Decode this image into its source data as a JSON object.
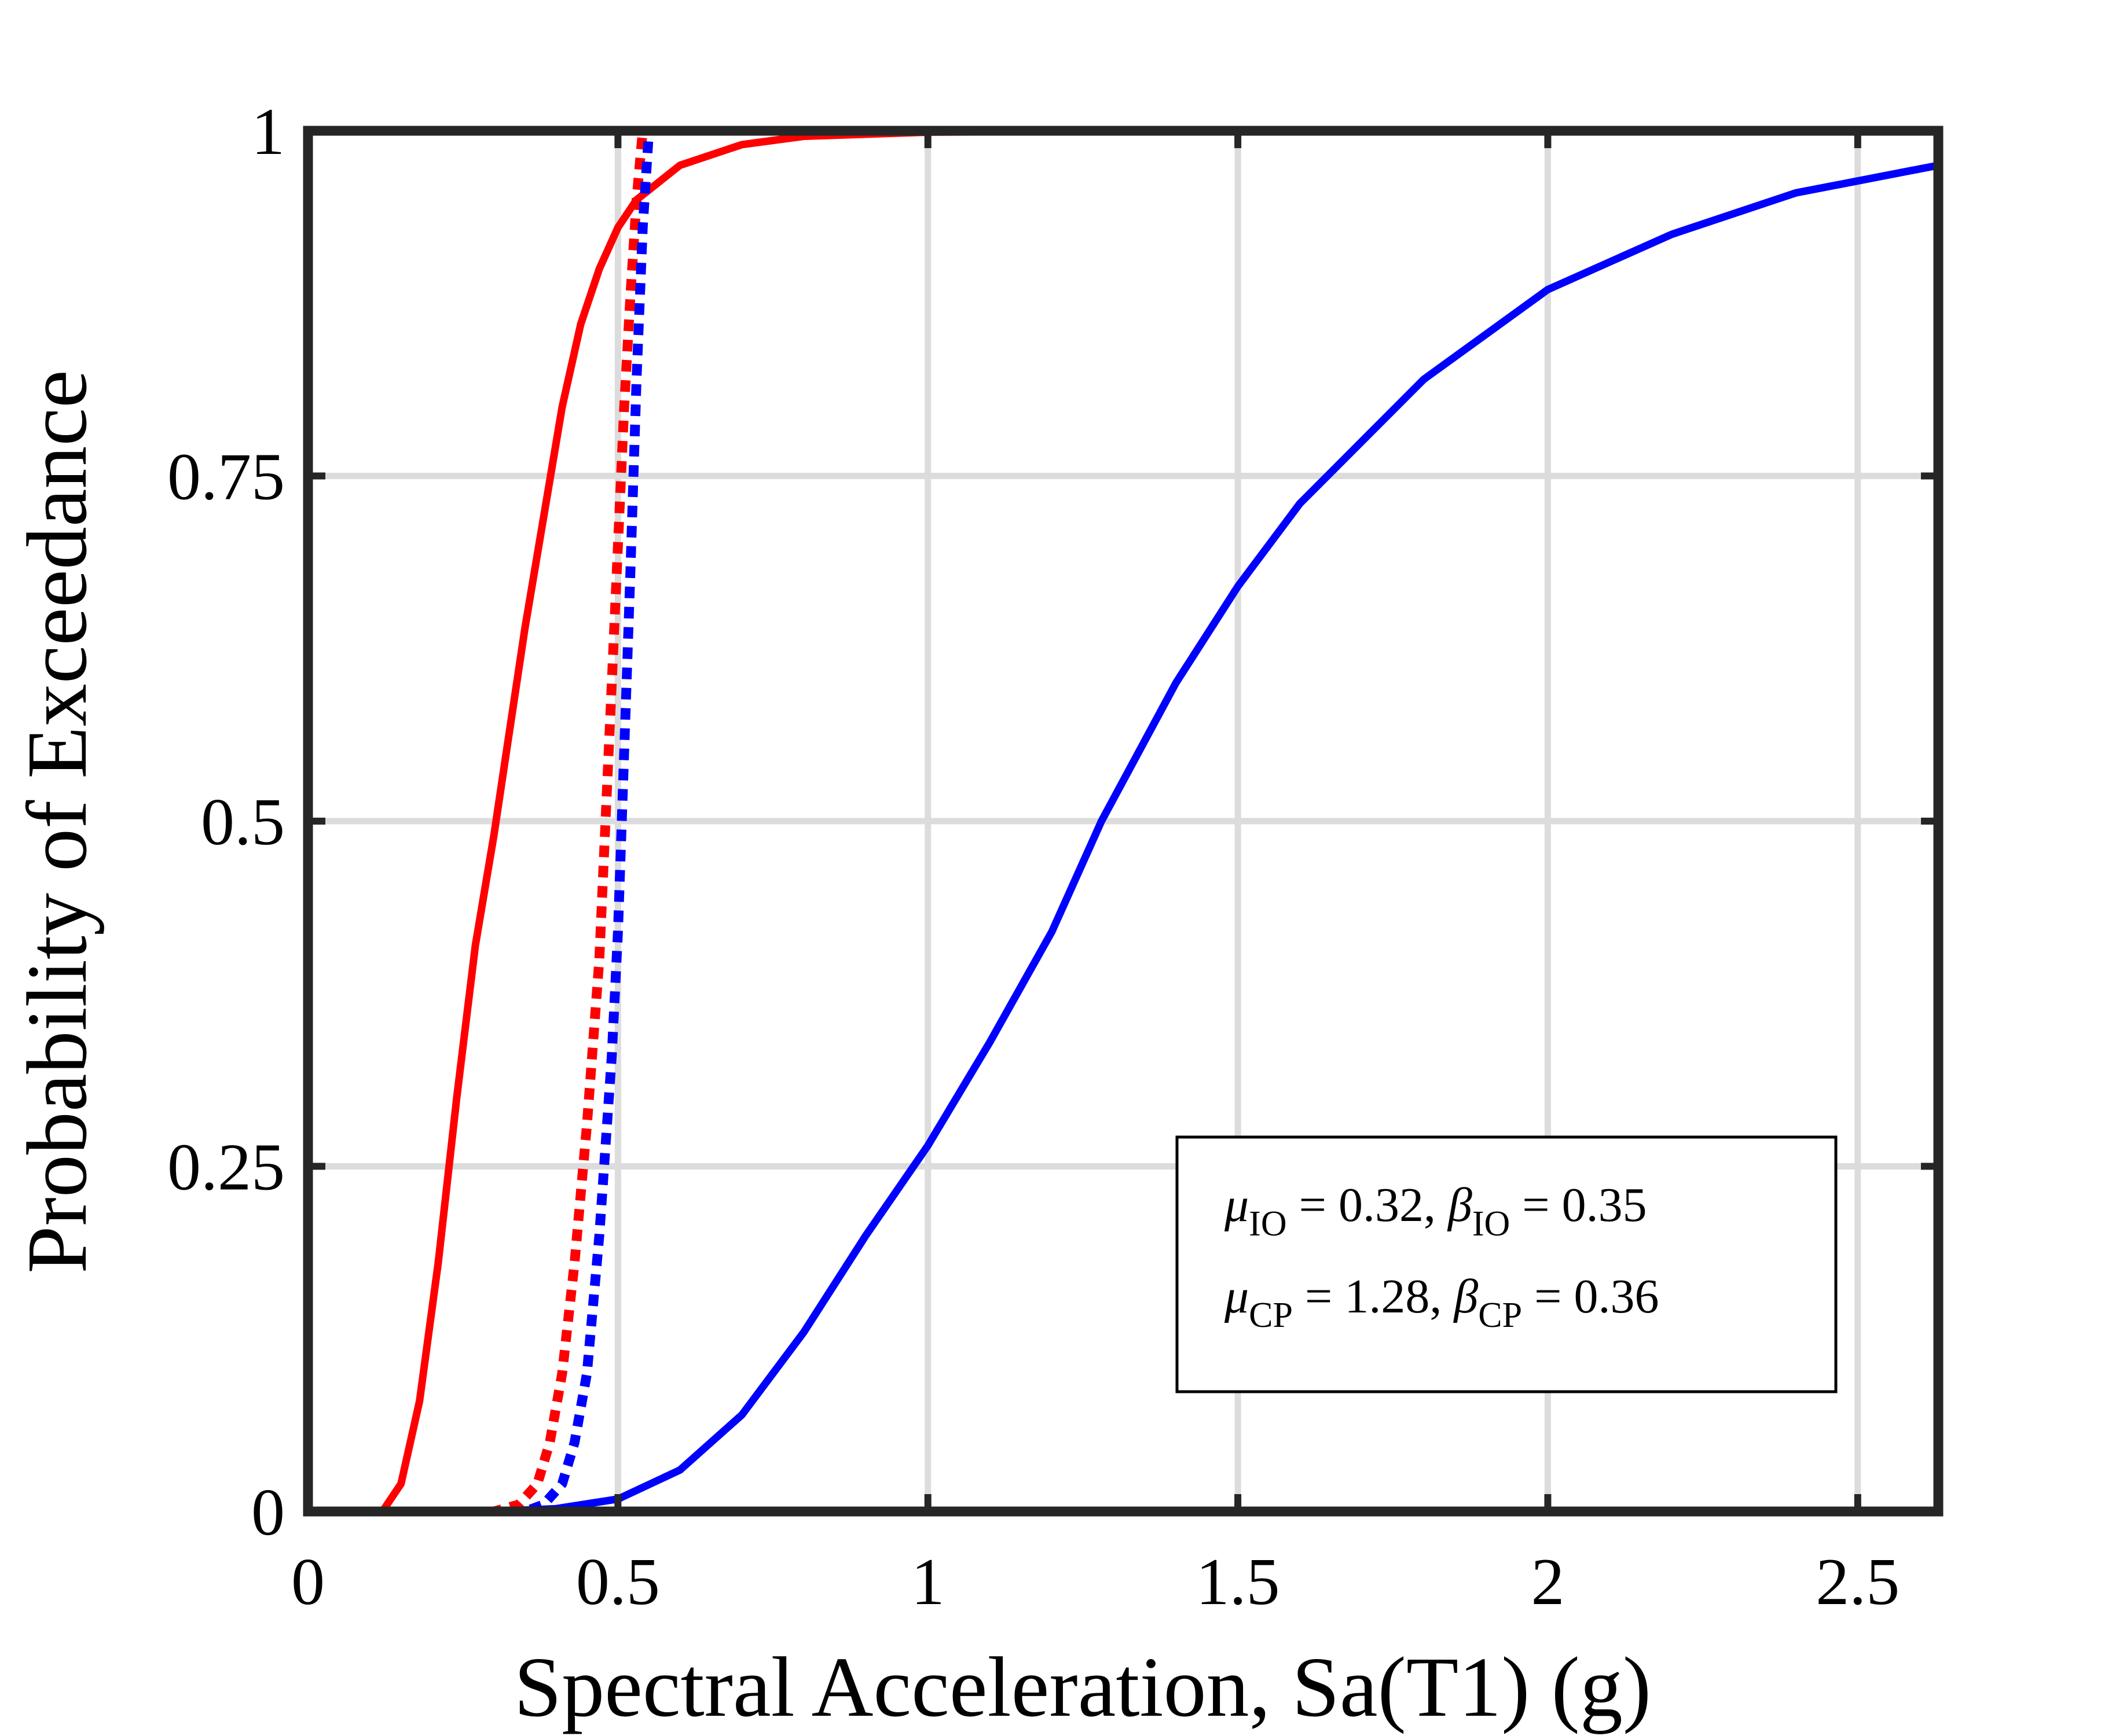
{
  "chart_data": {
    "type": "line",
    "title": "",
    "xlabel": "Spectral Acceleration, Sa(T1) (g)",
    "ylabel": "Probability of Exceedance",
    "xlim": [
      0,
      2.63
    ],
    "ylim": [
      0,
      1
    ],
    "xticks": [
      0,
      0.5,
      1,
      1.5,
      2,
      2.5
    ],
    "xtick_labels": [
      "0",
      "0.5",
      "1",
      "1.5",
      "2",
      "2.5"
    ],
    "yticks": [
      0,
      0.25,
      0.5,
      0.75,
      1
    ],
    "ytick_labels": [
      "0",
      "0.25",
      "0.5",
      "0.75",
      "1"
    ],
    "grid": true,
    "series": [
      {
        "color": "#ff0000",
        "style": "solid",
        "x": [
          0,
          0.12,
          0.15,
          0.18,
          0.21,
          0.24,
          0.27,
          0.3,
          0.32,
          0.35,
          0.38,
          0.41,
          0.44,
          0.47,
          0.5,
          0.53,
          0.6,
          0.7,
          0.8,
          1.0,
          1.5,
          2.0,
          2.63
        ],
        "y": [
          0,
          0,
          0.02,
          0.08,
          0.18,
          0.3,
          0.41,
          0.49,
          0.55,
          0.64,
          0.72,
          0.8,
          0.86,
          0.9,
          0.93,
          0.95,
          0.975,
          0.99,
          0.996,
          0.999,
          1,
          1,
          1
        ]
      },
      {
        "color": "#ff0000",
        "style": "dotted",
        "x": [
          0,
          0.3,
          0.34,
          0.37,
          0.39,
          0.41,
          0.43,
          0.45,
          0.47,
          0.48,
          0.49,
          0.5,
          0.51,
          0.52,
          0.53,
          0.54,
          0.6,
          1.0,
          2.0,
          2.63
        ],
        "y": [
          0,
          0,
          0.005,
          0.02,
          0.05,
          0.1,
          0.18,
          0.28,
          0.4,
          0.5,
          0.6,
          0.7,
          0.8,
          0.88,
          0.95,
          1,
          1,
          1,
          1,
          1
        ]
      },
      {
        "color": "#0000ff",
        "style": "solid",
        "x": [
          0,
          0.3,
          0.4,
          0.5,
          0.6,
          0.7,
          0.8,
          0.9,
          1.0,
          1.1,
          1.2,
          1.28,
          1.4,
          1.5,
          1.6,
          1.8,
          2.0,
          2.2,
          2.4,
          2.63
        ],
        "y": [
          0,
          0,
          0.002,
          0.009,
          0.03,
          0.07,
          0.13,
          0.2,
          0.265,
          0.34,
          0.42,
          0.5,
          0.6,
          0.67,
          0.73,
          0.82,
          0.885,
          0.925,
          0.955,
          0.975
        ]
      },
      {
        "color": "#0000ff",
        "style": "dotted",
        "x": [
          0,
          0.35,
          0.38,
          0.41,
          0.43,
          0.45,
          0.47,
          0.49,
          0.5,
          0.51,
          0.52,
          0.53,
          0.54,
          0.55,
          0.6,
          1.0,
          2.0,
          2.63
        ],
        "y": [
          0,
          0,
          0.005,
          0.02,
          0.05,
          0.1,
          0.2,
          0.33,
          0.42,
          0.55,
          0.68,
          0.82,
          0.93,
          1,
          1,
          1,
          1,
          1
        ]
      }
    ],
    "annotation": {
      "line1": {
        "mu": "μ",
        "mu_sub": "IO",
        "mu_val": " = 0.32, ",
        "beta": "β",
        "beta_sub": "IO",
        "beta_val": " = 0.35"
      },
      "line2": {
        "mu": "μ",
        "mu_sub": "CP",
        "mu_val": " = 1.28, ",
        "beta": "β",
        "beta_sub": "CP",
        "beta_val": " = 0.36"
      }
    }
  }
}
